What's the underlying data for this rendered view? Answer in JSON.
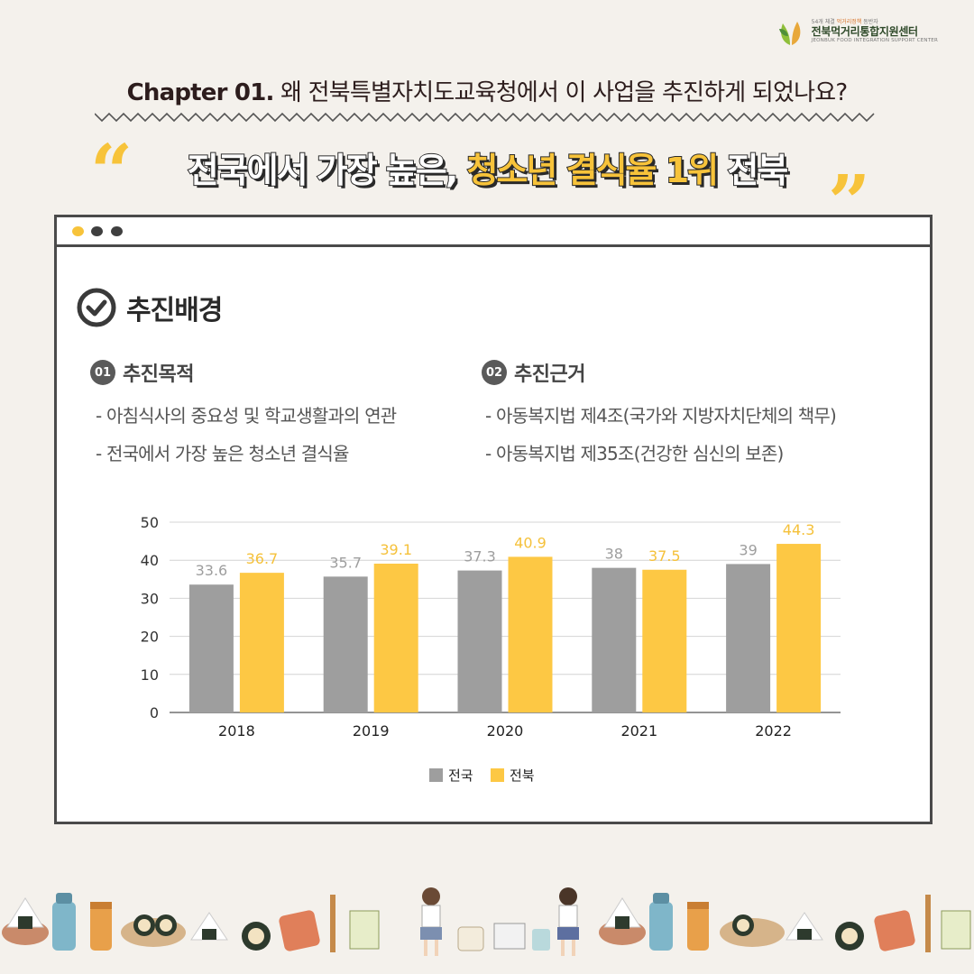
{
  "logo": {
    "tagline_pre": "54개 체결",
    "tagline_highlight": "먹거리정책",
    "tagline_post": "동반자",
    "name": "전북먹거리통합지원센터",
    "english": "JEONBUK FOOD INTEGRATION SUPPORT CENTER"
  },
  "chapter": {
    "label": "Chapter 01.",
    "question": "왜 전북특별자치도교육청에서 이 사업을 추진하게 되었나요?"
  },
  "headline": {
    "open_quote": "“",
    "close_quote": "”",
    "part1": "전국에서 가장 높은,",
    "part2": "청소년 결식율 1위",
    "part3": "전북"
  },
  "section": {
    "title": "추진배경",
    "purpose": {
      "num": "01",
      "title": "추진목적",
      "items": [
        "- 아침식사의 중요성 및 학교생활과의 연관",
        "- 전국에서 가장 높은 청소년 결식율"
      ]
    },
    "basis": {
      "num": "02",
      "title": "추진근거",
      "items": [
        "- 아동복지법 제4조(국가와 지방자치단체의 책무)",
        "- 아동복지법 제35조(건강한 심신의 보존)"
      ]
    }
  },
  "chart_data": {
    "type": "bar",
    "categories": [
      "2018",
      "2019",
      "2020",
      "2021",
      "2022"
    ],
    "series": [
      {
        "name": "전국",
        "values": [
          33.6,
          35.7,
          37.3,
          38,
          39
        ],
        "color": "#9e9e9e",
        "label_color": "#9e9e9e"
      },
      {
        "name": "전북",
        "values": [
          36.7,
          39.1,
          40.9,
          37.5,
          44.3
        ],
        "color": "#fdc844",
        "label_color": "#f5c13a"
      }
    ],
    "ylim": [
      0,
      50
    ],
    "yticks": [
      0,
      10,
      20,
      30,
      40,
      50
    ],
    "grid": true,
    "legend": "bottom-center"
  },
  "colors": {
    "accent_yellow": "#f7c33a",
    "frame": "#4a4a4a",
    "gray_bar": "#9e9e9e"
  }
}
